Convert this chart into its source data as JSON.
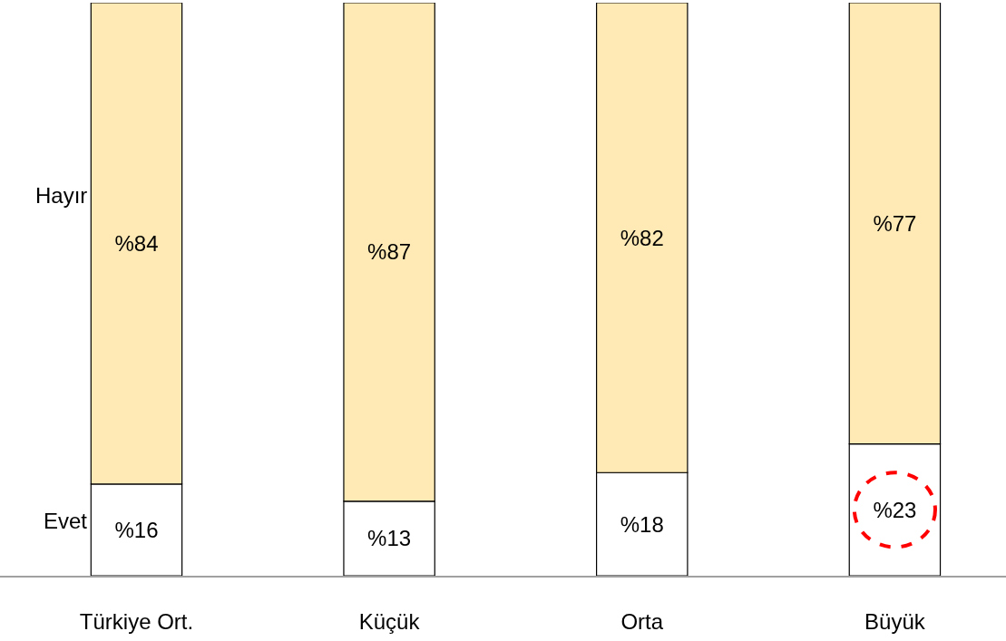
{
  "chart_data": {
    "type": "bar",
    "stacked": true,
    "categories": [
      "Türkiye Ort.",
      "Küçük",
      "Orta",
      "Büyük"
    ],
    "series": [
      {
        "name": "Evet",
        "color": "#ffffff",
        "values": [
          16,
          13,
          18,
          23
        ],
        "value_labels": [
          "%16",
          "%13",
          "%18",
          "%23"
        ]
      },
      {
        "name": "Hayır",
        "color": "#ffeab5",
        "values": [
          84,
          87,
          82,
          77
        ],
        "value_labels": [
          "%84",
          "%87",
          "%82",
          "%77"
        ]
      }
    ],
    "ylim": [
      0,
      100
    ],
    "tick_labels": "x",
    "legend": false
  }
}
